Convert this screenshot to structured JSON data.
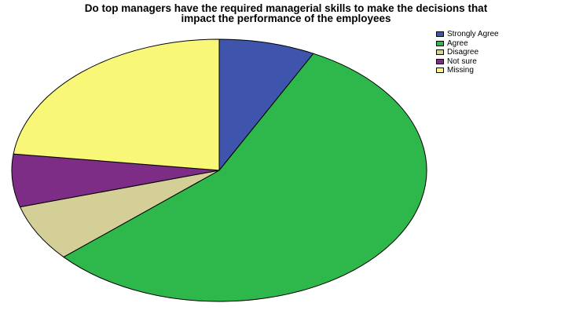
{
  "chart_data": {
    "type": "pie",
    "title": "Do top managers have the required managerial skills to make the decisions that impact the performance of the employees",
    "title_lines": [
      "Do top managers have the required managerial skills to make the decisions that",
      "impact the performance of the employees"
    ],
    "start": "12 o'clock",
    "direction": "clockwise",
    "legend_position": "top-right",
    "slices": [
      {
        "label": "Strongly Agree",
        "percent": 7.5,
        "color": "#3f55ad"
      },
      {
        "label": "Agree",
        "percent": 56.0,
        "color": "#2eb84b"
      },
      {
        "label": "Disagree",
        "percent": 7.0,
        "color": "#d4cf97"
      },
      {
        "label": "Not sure",
        "percent": 6.5,
        "color": "#7d2d85"
      },
      {
        "label": "Missing",
        "percent": 23.0,
        "color": "#f8f777"
      }
    ]
  }
}
